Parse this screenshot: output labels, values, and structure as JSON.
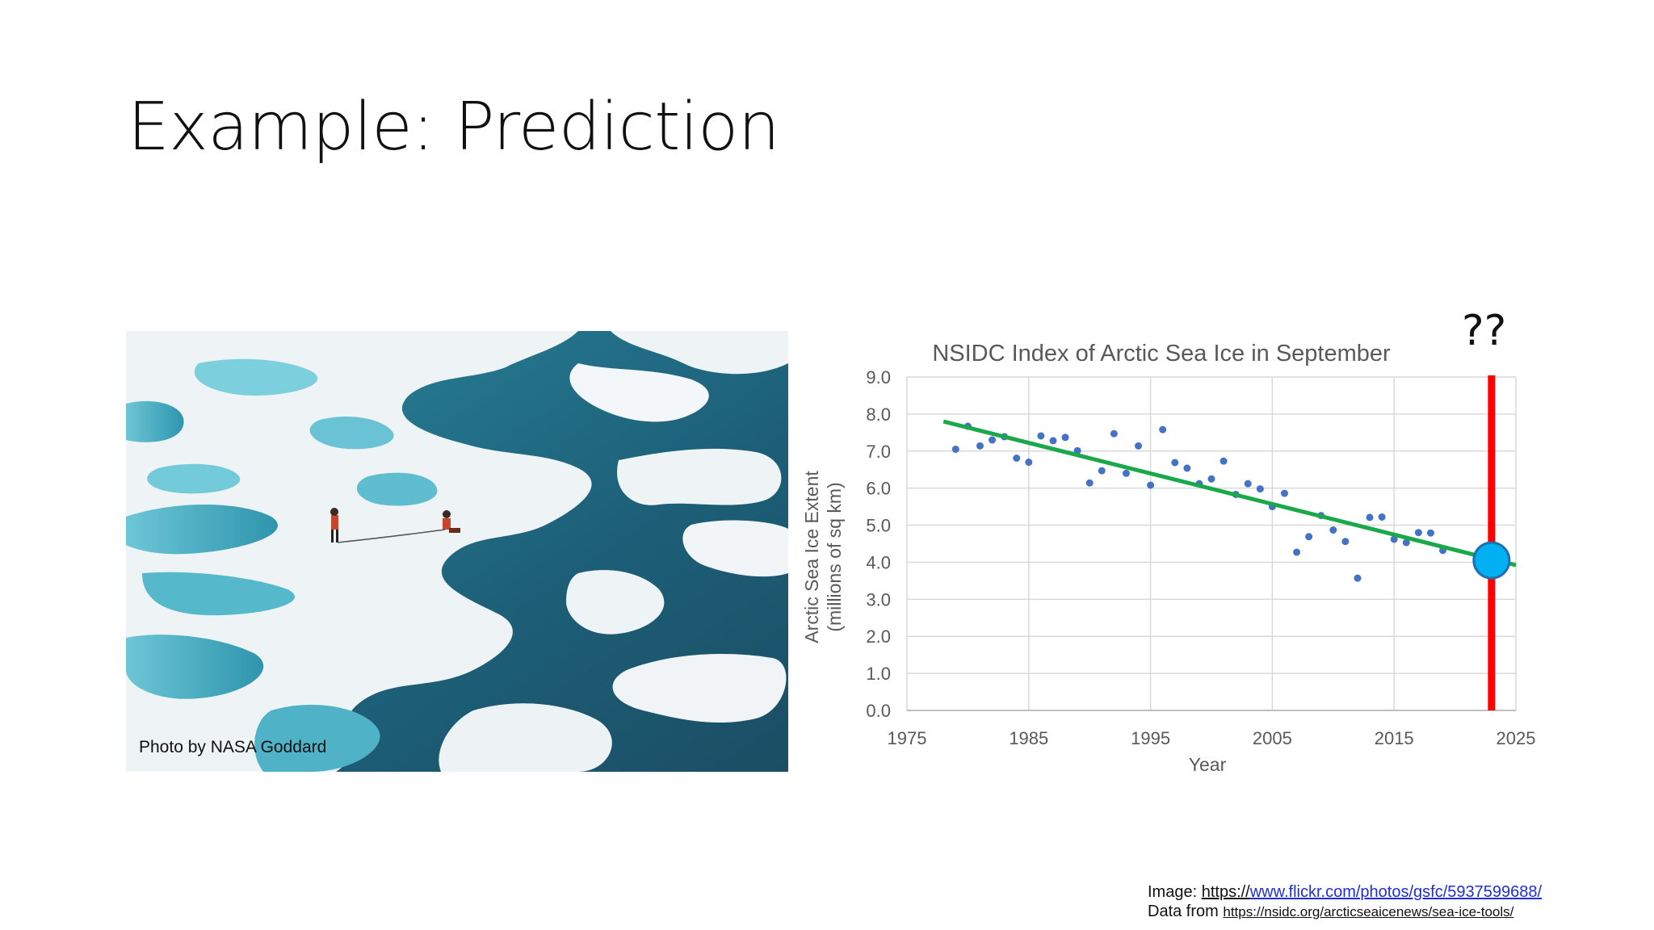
{
  "slide": {
    "title": "Example: Prediction"
  },
  "photo": {
    "caption": "Photo by NASA Goddard"
  },
  "annotation": {
    "unknown_label": "??"
  },
  "credits": {
    "image_prefix": "Image: ",
    "image_link_a": "https://",
    "image_link_b": "www.flickr.com/photos/gsfc/5937599688/",
    "data_prefix": "Data from ",
    "data_link": "https://nsidc.org/arcticseaicenews/sea-ice-tools/"
  },
  "colors": {
    "trend": "#1aa84a",
    "points": "#4472c4",
    "marker_line": "#ff0000",
    "prediction": "#00b0f0"
  },
  "chart_data": {
    "type": "scatter",
    "title": "NSIDC Index of Arctic Sea Ice in September",
    "xlabel": "Year",
    "ylabel": "Arctic Sea Ice Extent",
    "ylabel2": "(millions of sq km)",
    "xlim": [
      1975,
      2025
    ],
    "ylim": [
      0,
      9
    ],
    "xticks": [
      1975,
      1985,
      1995,
      2005,
      2015,
      2025
    ],
    "yticks": [
      "0.0",
      "1.0",
      "2.0",
      "3.0",
      "4.0",
      "5.0",
      "6.0",
      "7.0",
      "8.0",
      "9.0"
    ],
    "x": [
      1979,
      1980,
      1981,
      1982,
      1983,
      1984,
      1985,
      1986,
      1987,
      1988,
      1989,
      1990,
      1991,
      1992,
      1993,
      1994,
      1995,
      1996,
      1997,
      1998,
      1999,
      2000,
      2001,
      2002,
      2003,
      2004,
      2005,
      2006,
      2007,
      2008,
      2009,
      2010,
      2011,
      2012,
      2013,
      2014,
      2015,
      2016,
      2017,
      2018,
      2019
    ],
    "y": [
      7.05,
      7.67,
      7.14,
      7.3,
      7.39,
      6.81,
      6.7,
      7.41,
      7.28,
      7.37,
      7.01,
      6.14,
      6.47,
      7.47,
      6.4,
      7.14,
      6.08,
      7.58,
      6.69,
      6.54,
      6.12,
      6.25,
      6.73,
      5.83,
      6.12,
      5.98,
      5.5,
      5.86,
      4.27,
      4.69,
      5.26,
      4.87,
      4.56,
      3.57,
      5.21,
      5.22,
      4.62,
      4.53,
      4.8,
      4.79,
      4.32
    ],
    "trend": {
      "x": [
        1978,
        2025
      ],
      "y": [
        7.8,
        3.92
      ]
    },
    "prediction": {
      "x": 2023,
      "y": 4.05
    },
    "marker_year": 2023
  }
}
